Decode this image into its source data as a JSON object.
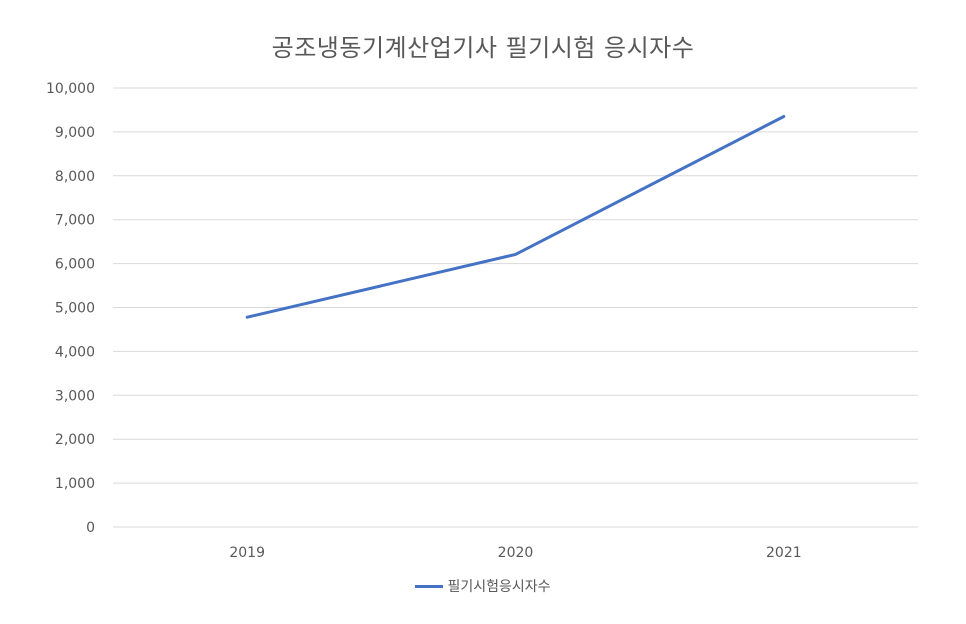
{
  "chart_data": {
    "type": "line",
    "title": "공조냉동기계산업기사 필기시험 응시자수",
    "xlabel": "",
    "ylabel": "",
    "categories": [
      "2019",
      "2020",
      "2021"
    ],
    "series": [
      {
        "name": "필기시험응시자수",
        "values": [
          4780,
          6210,
          9350
        ]
      }
    ],
    "ylim": [
      0,
      10000
    ],
    "y_ticks": [
      0,
      1000,
      2000,
      3000,
      4000,
      5000,
      6000,
      7000,
      8000,
      9000,
      10000
    ],
    "y_tick_labels": [
      "0",
      "1,000",
      "2,000",
      "3,000",
      "4,000",
      "5,000",
      "6,000",
      "7,000",
      "8,000",
      "9,000",
      "10,000"
    ],
    "grid": true,
    "legend_position": "bottom",
    "colors": {
      "series": "#4472C4",
      "grid": "#D9D9D9",
      "text": "#595959"
    }
  }
}
